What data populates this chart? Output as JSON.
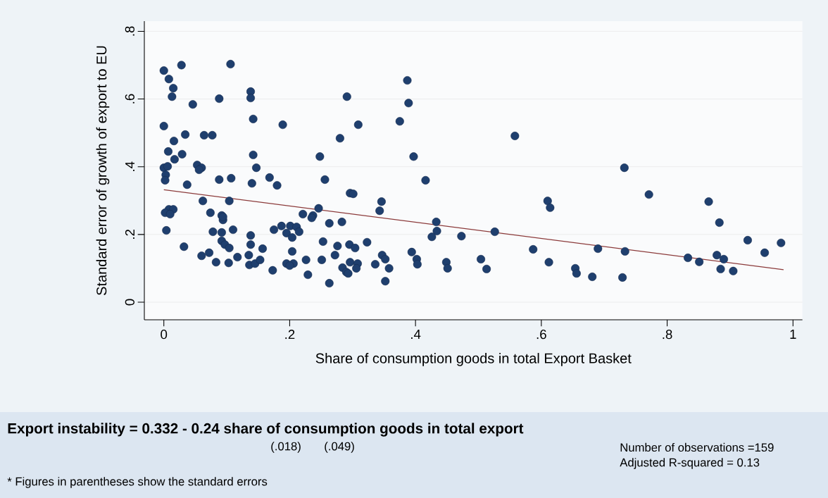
{
  "chart_data": {
    "type": "scatter",
    "xlabel": "Share of consumption goods in total Export Basket",
    "ylabel": "Standard error of  growth of export to EU",
    "xlim": [
      -0.031,
      1.015
    ],
    "ylim": [
      -0.052,
      0.83
    ],
    "xticks": [
      0,
      {
        "value": 0.2,
        "label": ".2"
      },
      {
        "value": 0.4,
        "label": ".4"
      },
      {
        "value": 0.6,
        "label": ".6"
      },
      {
        "value": 0.8,
        "label": ".8"
      },
      1
    ],
    "yticks": [
      0,
      {
        "value": 0.2,
        "label": ".2"
      },
      {
        "value": 0.4,
        "label": ".4"
      },
      {
        "value": 0.6,
        "label": ".6"
      },
      {
        "value": 0.8,
        "label": ".8"
      }
    ],
    "grid": "y",
    "marker": "circle",
    "series": [
      {
        "color": "#1f3f6e",
        "x": [
          0,
          0.028,
          0.106,
          0.008,
          0.015,
          0.013,
          0.046,
          0.088,
          0.138,
          0.138,
          0.291,
          0.142,
          0,
          0.189,
          0.034,
          0.064,
          0.077,
          0.016,
          0.28,
          0.007,
          0.029,
          0.017,
          0.142,
          0.248,
          0,
          0.006,
          0.003,
          0.002,
          0.053,
          0.06,
          0.056,
          0.147,
          0.088,
          0.107,
          0.14,
          0.168,
          0.18,
          0.256,
          0.037,
          0.062,
          0.104,
          0.008,
          0.015,
          0.002,
          0.01,
          0.074,
          0.092,
          0.094,
          0.094,
          0.004,
          0.078,
          0.092,
          0.11,
          0.138,
          0.092,
          0.097,
          0.104,
          0.032,
          0.138,
          0.157,
          0.072,
          0.06,
          0.083,
          0.103,
          0.117,
          0.135,
          0.136,
          0.145,
          0.153,
          0.173,
          0.175,
          0.187,
          0.201,
          0.211,
          0.195,
          0.204,
          0.215,
          0.204,
          0.195,
          0.206,
          0.2,
          0.226,
          0.229,
          0.251,
          0.253,
          0.276,
          0.272,
          0.263,
          0.284,
          0.29,
          0.293,
          0.296,
          0.221,
          0.237,
          0.235,
          0.246,
          0.263,
          0.283,
          0.295,
          0.296,
          0.387,
          0.389,
          0.375,
          0.309,
          0.558,
          0.397,
          0.416,
          0.301,
          0.346,
          0.343,
          0.433,
          0.434,
          0.426,
          0.473,
          0.526,
          0.61,
          0.614,
          0.323,
          0.304,
          0.347,
          0.352,
          0.336,
          0.358,
          0.352,
          0.308,
          0.306,
          0.394,
          0.402,
          0.403,
          0.449,
          0.451,
          0.504,
          0.513,
          0.587,
          0.612,
          0.654,
          0.656,
          0.732,
          0.771,
          0.866,
          0.883,
          0.69,
          0.733,
          0.681,
          0.729,
          0.833,
          0.851,
          0.879,
          0.89,
          0.885,
          0.905,
          0.928,
          0.955,
          0.981
        ],
        "values": [
          0.684,
          0.7,
          0.703,
          0.659,
          0.632,
          0.607,
          0.584,
          0.601,
          0.622,
          0.603,
          0.607,
          0.541,
          0.52,
          0.524,
          0.495,
          0.493,
          0.493,
          0.476,
          0.484,
          0.445,
          0.437,
          0.422,
          0.435,
          0.43,
          0.397,
          0.401,
          0.376,
          0.36,
          0.405,
          0.397,
          0.391,
          0.397,
          0.362,
          0.366,
          0.351,
          0.368,
          0.345,
          0.362,
          0.347,
          0.299,
          0.299,
          0.274,
          0.274,
          0.264,
          0.26,
          0.264,
          0.256,
          0.243,
          0.252,
          0.212,
          0.208,
          0.206,
          0.214,
          0.197,
          0.181,
          0.17,
          0.16,
          0.164,
          0.17,
          0.158,
          0.146,
          0.137,
          0.118,
          0.116,
          0.133,
          0.139,
          0.11,
          0.114,
          0.125,
          0.094,
          0.214,
          0.225,
          0.225,
          0.222,
          0.204,
          0.191,
          0.208,
          0.15,
          0.114,
          0.114,
          0.108,
          0.125,
          0.081,
          0.125,
          0.179,
          0.166,
          0.139,
          0.056,
          0.102,
          0.089,
          0.085,
          0.322,
          0.26,
          0.256,
          0.249,
          0.277,
          0.233,
          0.237,
          0.17,
          0.118,
          0.655,
          0.588,
          0.534,
          0.524,
          0.491,
          0.43,
          0.36,
          0.32,
          0.297,
          0.27,
          0.237,
          0.21,
          0.193,
          0.195,
          0.208,
          0.299,
          0.279,
          0.177,
          0.16,
          0.139,
          0.127,
          0.112,
          0.1,
          0.062,
          0.114,
          0.1,
          0.148,
          0.127,
          0.112,
          0.118,
          0.1,
          0.127,
          0.098,
          0.156,
          0.118,
          0.1,
          0.085,
          0.397,
          0.318,
          0.297,
          0.235,
          0.158,
          0.15,
          0.075,
          0.073,
          0.131,
          0.119,
          0.139,
          0.127,
          0.098,
          0.092,
          0.183,
          0.146,
          0.175
        ]
      },
      {
        "type": "line",
        "marker": "none",
        "color": "#8b3a3a",
        "x": [
          0,
          0.985
        ],
        "values": [
          0.332,
          0.096
        ]
      }
    ],
    "annotations": [
      "Export instability = 0.332   - 0.24 share of consumption goods in total export",
      "(.018)",
      "(.049)",
      "Number of observations =159",
      "Adjusted R-squared       = 0.13",
      "* Figures in parentheses show the standard errors"
    ]
  }
}
